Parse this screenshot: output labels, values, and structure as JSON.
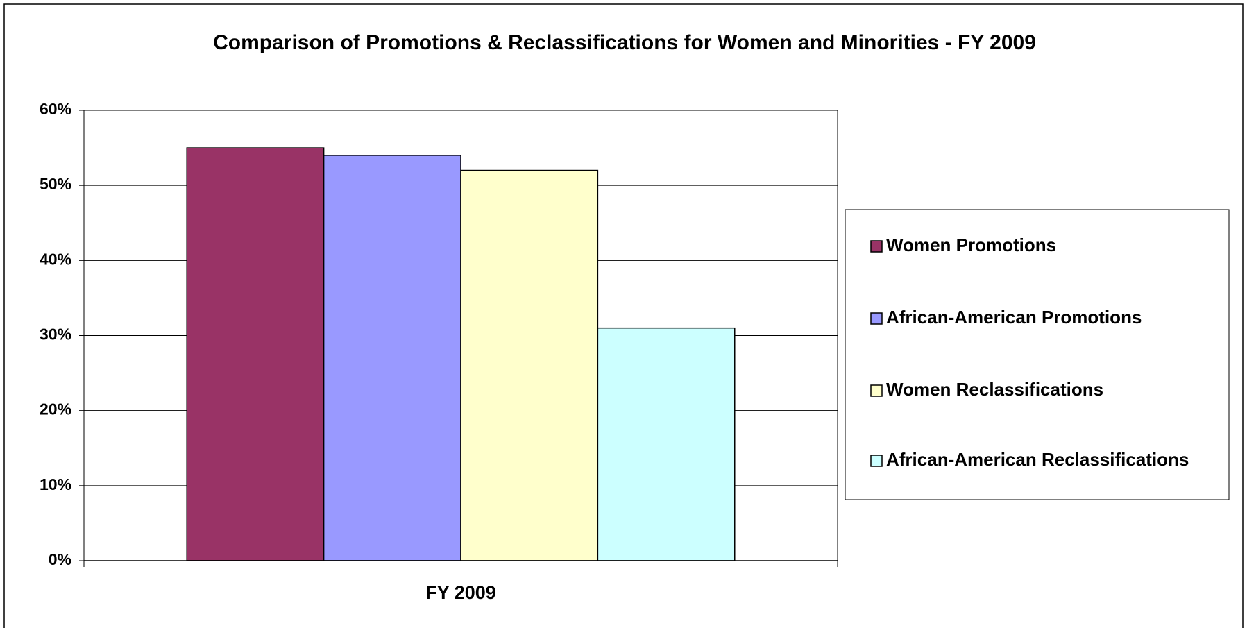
{
  "chart_data": {
    "type": "bar",
    "title": "Comparison of Promotions & Reclassifications for Women and Minorities - FY 2009",
    "categories": [
      "FY 2009"
    ],
    "series": [
      {
        "name": "Women Promotions",
        "color": "#993366",
        "values": [
          55
        ]
      },
      {
        "name": "African-American Promotions",
        "color": "#9999ff",
        "values": [
          54
        ]
      },
      {
        "name": "Women Reclassifications",
        "color": "#ffffcc",
        "values": [
          52
        ]
      },
      {
        "name": "African-American Reclassifications",
        "color": "#ccffff",
        "values": [
          31
        ]
      }
    ],
    "ylim": [
      0,
      60
    ],
    "yticks": [
      {
        "value": 0,
        "label": "0%"
      },
      {
        "value": 10,
        "label": "10%"
      },
      {
        "value": 20,
        "label": "20%"
      },
      {
        "value": 30,
        "label": "30%"
      },
      {
        "value": 40,
        "label": "40%"
      },
      {
        "value": 50,
        "label": "50%"
      },
      {
        "value": 60,
        "label": "60%"
      }
    ],
    "grid": true,
    "legend": "right"
  }
}
